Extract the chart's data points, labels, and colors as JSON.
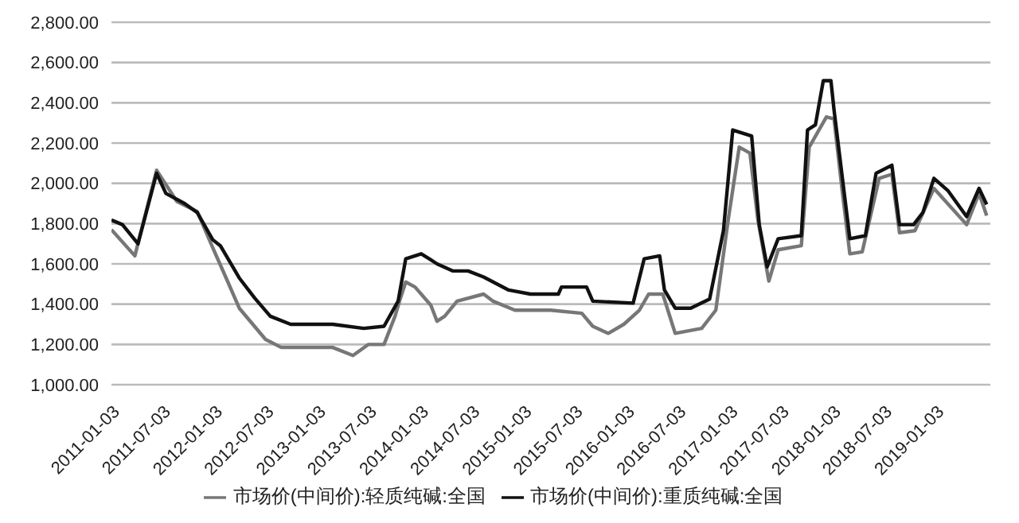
{
  "chart_data": {
    "type": "line",
    "legend": "bottom",
    "grid": "y",
    "ylim": [
      1000,
      2800
    ],
    "yticks": [
      {
        "value": 1000,
        "label": "1,000.00"
      },
      {
        "value": 1200,
        "label": "1,200.00"
      },
      {
        "value": 1400,
        "label": "1,400.00"
      },
      {
        "value": 1600,
        "label": "1,600.00"
      },
      {
        "value": 1800,
        "label": "1,800.00"
      },
      {
        "value": 2000,
        "label": "2,000.00"
      },
      {
        "value": 2200,
        "label": "2,200.00"
      },
      {
        "value": 2400,
        "label": "2,400.00"
      },
      {
        "value": 2600,
        "label": "2,600.00"
      },
      {
        "value": 2800,
        "label": "2,800.00"
      }
    ],
    "xlim": [
      "2011-01-03",
      "2019-07-15"
    ],
    "xticks": [
      "2011-01-03",
      "2011-07-03",
      "2012-01-03",
      "2012-07-03",
      "2013-01-03",
      "2013-07-03",
      "2014-01-03",
      "2014-07-03",
      "2015-01-03",
      "2015-07-03",
      "2016-01-03",
      "2016-07-03",
      "2017-01-03",
      "2017-07-03",
      "2018-01-03",
      "2018-07-03",
      "2019-01-03"
    ],
    "series": [
      {
        "name": "市场价(中间价):轻质纯碱:全国",
        "color": "#777777",
        "x": [
          "2011-01-03",
          "2011-03-27",
          "2011-06-12",
          "2011-08-23",
          "2011-11-03",
          "2011-12-28",
          "2012-02-15",
          "2012-03-31",
          "2012-07-02",
          "2012-08-27",
          "2013-02-25",
          "2013-05-08",
          "2013-07-02",
          "2013-08-26",
          "2013-10-04",
          "2013-10-20",
          "2013-11-11",
          "2013-12-14",
          "2014-02-08",
          "2014-03-02",
          "2014-03-29",
          "2014-05-12",
          "2014-08-14",
          "2014-09-16",
          "2014-12-03",
          "2015-04-09",
          "2015-07-28",
          "2015-09-05",
          "2015-10-30",
          "2015-12-24",
          "2016-02-17",
          "2016-03-21",
          "2016-05-10",
          "2016-06-23",
          "2016-09-25",
          "2016-11-14",
          "2016-12-28",
          "2017-02-05",
          "2017-03-15",
          "2017-04-12",
          "2017-05-21",
          "2017-06-23",
          "2017-09-13",
          "2017-10-11",
          "2017-12-11",
          "2018-01-07",
          "2018-02-04",
          "2018-03-04",
          "2018-04-17",
          "2018-06-16",
          "2018-07-31",
          "2018-08-27",
          "2018-10-21",
          "2018-12-27",
          "2019-04-22",
          "2019-06-05",
          "2019-07-02"
        ],
        "values": [
          1770,
          1640,
          2065,
          1910,
          1860,
          1680,
          1525,
          1380,
          1225,
          1185,
          1185,
          1145,
          1200,
          1200,
          1340,
          1415,
          1510,
          1485,
          1395,
          1315,
          1340,
          1415,
          1450,
          1415,
          1370,
          1370,
          1355,
          1290,
          1255,
          1300,
          1370,
          1450,
          1450,
          1255,
          1280,
          1370,
          1820,
          2180,
          2150,
          1820,
          1515,
          1670,
          1690,
          2180,
          2330,
          2320,
          1975,
          1650,
          1660,
          2025,
          2045,
          1755,
          1765,
          1975,
          1795,
          1950,
          1840
        ]
      },
      {
        "name": "市场价(中间价):重质纯碱:全国",
        "color": "#111111",
        "x": [
          "2011-01-03",
          "2011-02-11",
          "2011-04-07",
          "2011-06-12",
          "2011-07-15",
          "2011-09-19",
          "2011-11-03",
          "2011-12-28",
          "2012-01-24",
          "2012-03-31",
          "2012-05-25",
          "2012-07-19",
          "2012-09-29",
          "2013-02-25",
          "2013-06-15",
          "2013-08-26",
          "2013-10-15",
          "2013-11-11",
          "2014-01-05",
          "2014-02-08",
          "2014-03-02",
          "2014-04-26",
          "2014-06-20",
          "2014-08-14",
          "2014-11-11",
          "2015-01-27",
          "2015-05-06",
          "2015-05-17",
          "2015-08-14",
          "2015-09-05",
          "2016-01-26",
          "2016-03-05",
          "2016-04-29",
          "2016-05-16",
          "2016-06-23",
          "2016-08-17",
          "2016-10-23",
          "2016-12-11",
          "2017-01-13",
          "2017-03-21",
          "2017-04-17",
          "2017-05-15",
          "2017-06-23",
          "2017-09-13",
          "2017-10-05",
          "2017-11-02",
          "2017-11-30",
          "2017-12-27",
          "2018-01-07",
          "2018-03-04",
          "2018-04-28",
          "2018-06-05",
          "2018-07-31",
          "2018-08-27",
          "2018-10-16",
          "2018-11-18",
          "2018-12-27",
          "2019-02-14",
          "2019-04-22",
          "2019-06-05",
          "2019-07-02"
        ],
        "values": [
          1818,
          1795,
          1700,
          2050,
          1950,
          1900,
          1855,
          1720,
          1690,
          1530,
          1430,
          1340,
          1300,
          1300,
          1280,
          1290,
          1415,
          1625,
          1650,
          1620,
          1600,
          1565,
          1565,
          1535,
          1470,
          1450,
          1450,
          1485,
          1485,
          1415,
          1405,
          1625,
          1640,
          1470,
          1380,
          1380,
          1425,
          1765,
          2265,
          2235,
          1795,
          1585,
          1725,
          1740,
          2265,
          2290,
          2510,
          2510,
          2365,
          1725,
          1740,
          2050,
          2090,
          1795,
          1795,
          1855,
          2025,
          1965,
          1835,
          1975,
          1895
        ]
      }
    ]
  }
}
